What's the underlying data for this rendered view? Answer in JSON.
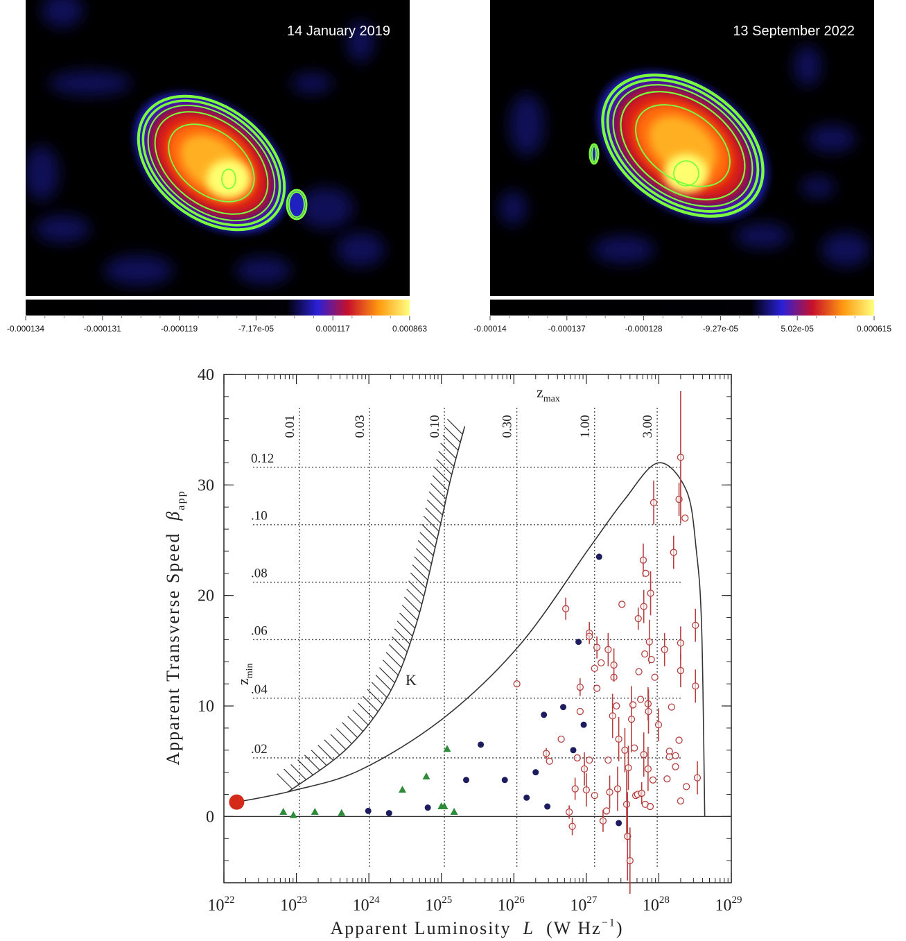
{
  "chart_data": [
    {
      "type": "image",
      "title": "14 January 2019",
      "colorbar_ticks": [
        {
          "value": -0.000134,
          "label": "-0.000134"
        },
        {
          "value": -0.000131,
          "label": "-0.000131"
        },
        {
          "value": -0.000119,
          "label": "-0.000119"
        },
        {
          "value": -7.17e-05,
          "label": "-7.17e-05"
        },
        {
          "value": 0.000117,
          "label": "0.000117"
        },
        {
          "value": 0.000863,
          "label": "0.000863"
        }
      ]
    },
    {
      "type": "image",
      "title": "13 September 2022",
      "colorbar_ticks": [
        {
          "value": -0.00014,
          "label": "-0.00014"
        },
        {
          "value": -0.000137,
          "label": "-0.000137"
        },
        {
          "value": -0.000128,
          "label": "-0.000128"
        },
        {
          "value": -9.27e-05,
          "label": "-9.27e-05"
        },
        {
          "value": 5.02e-05,
          "label": "5.02e-05"
        },
        {
          "value": 0.000615,
          "label": "0.000615"
        }
      ]
    },
    {
      "type": "scatter",
      "xlabel": {
        "parts": [
          {
            "text": "Apparent Luminosity  "
          },
          {
            "text": "L",
            "style": "italic"
          },
          {
            "text": "  (W Hz"
          },
          {
            "text": "−1",
            "style": "sup"
          },
          {
            "text": ")"
          }
        ]
      },
      "ylabel": {
        "parts": [
          {
            "text": "Apparent Transverse Speed  "
          },
          {
            "text": "β",
            "style": "italic"
          },
          {
            "text": "app",
            "style": "sub"
          }
        ]
      },
      "xlim": [
        1e+22,
        1e+29
      ],
      "log_x": true,
      "ylim": [
        -6,
        40
      ],
      "xticks": [
        {
          "value": 1e+22,
          "label": "10",
          "exponent": "22"
        },
        {
          "value": 1e+23,
          "label": "10",
          "exponent": "23"
        },
        {
          "value": 1e+24,
          "label": "10",
          "exponent": "24"
        },
        {
          "value": 1e+25,
          "label": "10",
          "exponent": "25"
        },
        {
          "value": 1e+26,
          "label": "10",
          "exponent": "26"
        },
        {
          "value": 1e+27,
          "label": "10",
          "exponent": "27"
        },
        {
          "value": 1e+28,
          "label": "10",
          "exponent": "28"
        },
        {
          "value": 1e+29,
          "label": "10",
          "exponent": "29"
        }
      ],
      "yticks": [
        0,
        10,
        20,
        30,
        40
      ],
      "zmax_label": {
        "text": "z",
        "subscript": "max"
      },
      "zmin_label": {
        "text": "z",
        "subscript": "min"
      },
      "zmax_lines": {
        "labels": [
          "0.01",
          "0.03",
          "0.10",
          "0.30",
          "1.00",
          "3.00"
        ],
        "x": [
          1.1e+23,
          1.02e+24,
          1.1e+25,
          1.1e+26,
          1.3e+27,
          9.5e+27
        ]
      },
      "zmin_lines": {
        "labels": [
          ".02",
          ".04",
          ".06",
          ".08",
          ".10",
          "0.12"
        ],
        "y": [
          5.3,
          10.7,
          16.0,
          21.2,
          26.4,
          31.6
        ]
      },
      "annotation": "K",
      "series": [
        {
          "marker": "line",
          "color": "#333333",
          "hatch": true,
          "x": [
            7.6e+22,
            4.9e+23,
            1.9e+24,
            4.5e+24,
            8.6e+24,
            1.35e+25,
            2.1e+25
          ],
          "values": [
            2.2,
            6.1,
            11.1,
            17.4,
            24.9,
            30.6,
            35.3
          ]
        },
        {
          "marker": "line",
          "color": "#333333",
          "x": [
            1.5e+22,
            8.5e+22,
            7.6e+23,
            1.07e+25,
            1.2e+26,
            1.1e+27,
            3.3e+27,
            9.8e+27,
            2.4e+28,
            3.3e+28,
            3.9e+28,
            4.3e+28
          ],
          "values": [
            1.3,
            2.3,
            4.2,
            8.9,
            15.5,
            24.3,
            28.6,
            32,
            29.5,
            24,
            17,
            0
          ]
        },
        {
          "marker": "circle-open",
          "color": "#b5403f",
          "x": [
            1.1e+26,
            2.8e+26,
            3.1e+26,
            4.5e+26,
            5.2e+26,
            5.8e+26,
            6.4e+26,
            7e+26,
            7.5e+26,
            8.2e+26,
            8.2e+26,
            9.4e+26,
            1e+27,
            1.1e+27,
            1.1e+27,
            1.1e+27,
            1.3e+27,
            1.3e+27,
            1.4e+27,
            1.4e+27,
            1.6e+27,
            1.7e+27,
            1.9e+27,
            2e+27,
            2e+27,
            2.1e+27,
            2.3e+27,
            2.4e+27,
            2.4e+27,
            2.6e+27,
            2.7e+27,
            2.8e+27,
            3.1e+27,
            3.4e+27,
            3.6e+27,
            3.7e+27,
            3.8e+27,
            4e+27,
            4.2e+27,
            4.4e+27,
            4.6e+27,
            4.8e+27,
            5.1e+27,
            5.2e+27,
            5.3e+27,
            5.6e+27,
            5.8e+27,
            6.1e+27,
            6.2e+27,
            6.2e+27,
            6.4e+27,
            6.5e+27,
            6.6e+27,
            7.1e+27,
            7.1e+27,
            7.2e+27,
            7.4e+27,
            7.6e+27,
            7.7e+27,
            7.9e+27,
            8.3e+27,
            8.5e+27,
            8.8e+27,
            9.9e+27,
            1.2e+28,
            1.3e+28,
            1.4e+28,
            1.4e+28,
            1.5e+28,
            1.6e+28,
            1.7e+28,
            1.7e+28,
            1.9e+28,
            1.9e+28,
            2e+28,
            2e+28,
            2e+28,
            2e+28,
            2.3e+28,
            2.4e+28,
            3.2e+28,
            3.2e+28,
            3.4e+28
          ],
          "values": [
            12.0,
            5.7,
            5.0,
            7.0,
            18.8,
            0.4,
            -0.9,
            2.5,
            5.3,
            11.7,
            9.5,
            4.3,
            2.4,
            5.1,
            16.6,
            16.3,
            1.9,
            13.4,
            15.3,
            11.6,
            13.9,
            -0.4,
            0.5,
            15.1,
            5.1,
            2.2,
            9.1,
            12.6,
            13.7,
            10.0,
            2.5,
            7.0,
            19.2,
            6.0,
            1.1,
            -1.8,
            4.4,
            -4.0,
            8.8,
            10.1,
            6.2,
            1.9,
            2.0,
            17.9,
            13.1,
            10.6,
            2.1,
            23.2,
            19.0,
            5.6,
            14.7,
            1.1,
            22.0,
            4.3,
            10.2,
            9.5,
            15.8,
            0.9,
            20.2,
            14.2,
            3.3,
            28.4,
            12.6,
            8.3,
            15.1,
            3.4,
            5.9,
            5.4,
            9.9,
            23.9,
            4.5,
            5.5,
            6.9,
            28.7,
            13.2,
            15.7,
            1.4,
            32.5,
            27.0,
            2.7,
            11.8,
            17.3,
            3.5
          ],
          "errors": [
            null,
            0.5,
            null,
            null,
            1.0,
            0.6,
            0.8,
            1.0,
            null,
            0.8,
            null,
            1.5,
            1.5,
            null,
            1.0,
            null,
            null,
            null,
            1.0,
            null,
            null,
            1.0,
            null,
            1.5,
            null,
            1.5,
            2.0,
            null,
            1.5,
            null,
            2.0,
            2.0,
            null,
            2.0,
            3.0,
            4.0,
            2.0,
            3.0,
            3.0,
            null,
            null,
            null,
            null,
            1.0,
            null,
            null,
            1.0,
            1.5,
            1.5,
            2.0,
            null,
            null,
            null,
            2.0,
            1.5,
            2.0,
            2.0,
            null,
            2.0,
            null,
            null,
            2.0,
            null,
            1.5,
            1.5,
            null,
            null,
            null,
            null,
            1.5,
            null,
            null,
            null,
            1.5,
            1.5,
            1.5,
            null,
            6.0,
            null,
            null,
            1.5,
            1.5,
            1.5
          ]
        },
        {
          "marker": "circle",
          "color": "#1c1c5e",
          "x": [
            9.8e+23,
            1.9e+24,
            6.5e+24,
            2.2e+25,
            3.5e+25,
            7.5e+25,
            1.5e+26,
            2e+26,
            2.6e+26,
            2.9e+26,
            4.8e+26,
            6.6e+26,
            9.2e+26,
            7.8e+26,
            1.5e+27,
            2.8e+27
          ],
          "values": [
            0.5,
            0.3,
            0.8,
            3.3,
            6.5,
            3.3,
            1.7,
            4.0,
            9.2,
            0.9,
            9.9,
            6.0,
            8.3,
            15.8,
            23.5,
            -0.6
          ]
        },
        {
          "marker": "triangle",
          "color": "#2e8b3a",
          "x": [
            6.6e+22,
            9.1e+22,
            1.8e+23,
            4.2e+23,
            2.9e+24,
            6.2e+24,
            1e+25,
            1.1e+25,
            1.2e+25,
            1.5e+25
          ],
          "values": [
            0.4,
            0.1,
            0.4,
            0.3,
            2.4,
            3.6,
            0.9,
            0.9,
            6.1,
            0.4
          ]
        },
        {
          "marker": "circle-large",
          "color": "#d42a1a",
          "x": [
            1.5e+22
          ],
          "values": [
            1.3
          ]
        }
      ]
    }
  ]
}
